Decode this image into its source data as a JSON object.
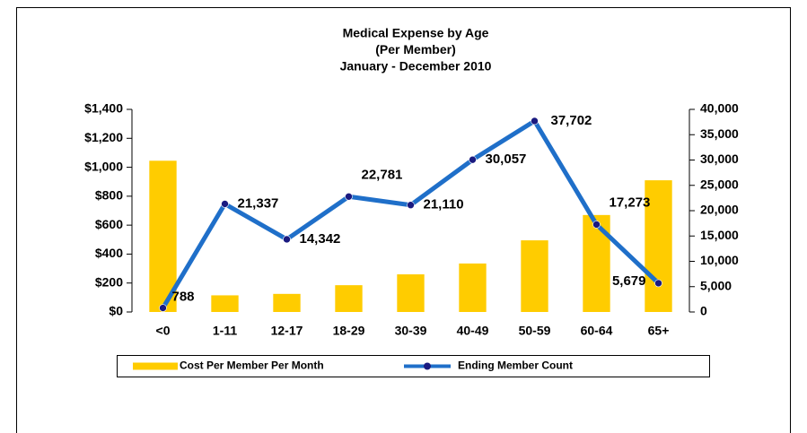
{
  "chart_data": {
    "type": "bar-line",
    "title": [
      "Medical Expense by Age",
      "(Per Member)",
      "January - December 2010"
    ],
    "categories": [
      "<0",
      "1-11",
      "12-17",
      "18-29",
      "30-39",
      "40-49",
      "50-59",
      "60-64",
      "65+"
    ],
    "series": [
      {
        "name": "Cost Per Member Per Month",
        "kind": "bar",
        "color": "#FFCC00",
        "values": [
          1045,
          115,
          125,
          185,
          260,
          335,
          495,
          670,
          910
        ]
      },
      {
        "name": "Ending Member Count",
        "kind": "line",
        "axis": "y2",
        "color": "#1F6FC9",
        "marker_color": "#1A1A80",
        "values": [
          788,
          21337,
          14342,
          22781,
          21110,
          30057,
          37702,
          17273,
          5679
        ],
        "value_labels": [
          "788",
          "21,337",
          "14,342",
          "22,781",
          "21,110",
          "30,057",
          "37,702",
          "17,273",
          "5,679"
        ]
      }
    ],
    "ylim": [
      0,
      1400
    ],
    "yticks": [
      {
        "value": 0,
        "label": "$0"
      },
      {
        "value": 200,
        "label": "$200"
      },
      {
        "value": 400,
        "label": "$400"
      },
      {
        "value": 600,
        "label": "$600"
      },
      {
        "value": 800,
        "label": "$800"
      },
      {
        "value": 1000,
        "label": "$1,000"
      },
      {
        "value": 1200,
        "label": "$1,200"
      },
      {
        "value": 1400,
        "label": "$1,400"
      }
    ],
    "y2lim": [
      0,
      40000
    ],
    "y2ticks": [
      0,
      {
        "value": 5000,
        "label": "5,000"
      },
      {
        "value": 10000,
        "label": "10,000"
      },
      {
        "value": 15000,
        "label": "15,000"
      },
      {
        "value": 20000,
        "label": "20,000"
      },
      {
        "value": 25000,
        "label": "25,000"
      },
      {
        "value": 30000,
        "label": "30,000"
      },
      {
        "value": 35000,
        "label": "35,000"
      },
      {
        "value": 40000,
        "label": "40,000"
      }
    ],
    "legend": "bottom"
  }
}
